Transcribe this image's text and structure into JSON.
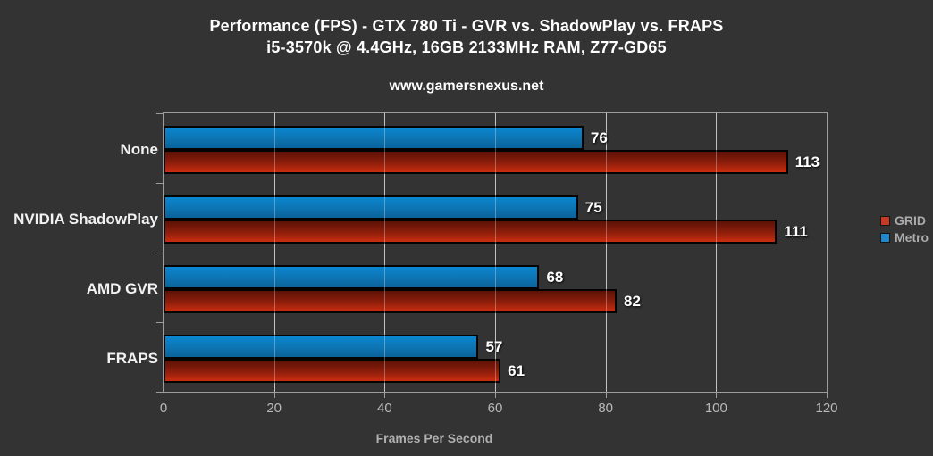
{
  "title": {
    "line1": "Performance (FPS) - GTX 780 Ti - GVR vs. ShadowPlay vs. FRAPS",
    "line2": "i5-3570k @ 4.4GHz, 16GB 2133MHz RAM, Z77-GD65"
  },
  "watermark": "www.gamersnexus.net",
  "chart_data": {
    "type": "bar",
    "orientation": "horizontal",
    "title": "Performance (FPS) - GTX 780 Ti - GVR vs. ShadowPlay vs. FRAPS",
    "subtitle": "i5-3570k @ 4.4GHz, 16GB 2133MHz RAM, Z77-GD65",
    "categories": [
      "None",
      "NVIDIA ShadowPlay",
      "AMD GVR",
      "FRAPS"
    ],
    "series": [
      {
        "name": "Metro",
        "values": [
          76,
          75,
          68,
          57
        ],
        "color_top": "#0a87d0",
        "color_mid": "#0d74b2",
        "color_bottom": "#0b629a",
        "legend_color": "#2187c8"
      },
      {
        "name": "GRID",
        "values": [
          113,
          111,
          82,
          61
        ],
        "color_top": "#5c1106",
        "color_mid": "#8e1e0b",
        "color_bottom": "#cb2d10",
        "legend_color": "#c33b25"
      }
    ],
    "legend_order": [
      "GRID",
      "Metro"
    ],
    "xlabel": "Frames Per Second",
    "xlim": [
      0,
      120
    ],
    "xticks": [
      0,
      20,
      40,
      60,
      80,
      100,
      120
    ],
    "grid": true,
    "legend_position": "right"
  },
  "colors": {
    "background": "#333333",
    "plot_frame": "#9c9c9c",
    "gridline": "#a8a8a8",
    "title_text": "#ffffff",
    "category_label": "#f2f2f2",
    "tick_label": "#b8b8b8",
    "axis_label": "#b0b0b0",
    "legend_text": "#ababab",
    "value_label": "#ffffff",
    "bar_border": "#040404"
  }
}
